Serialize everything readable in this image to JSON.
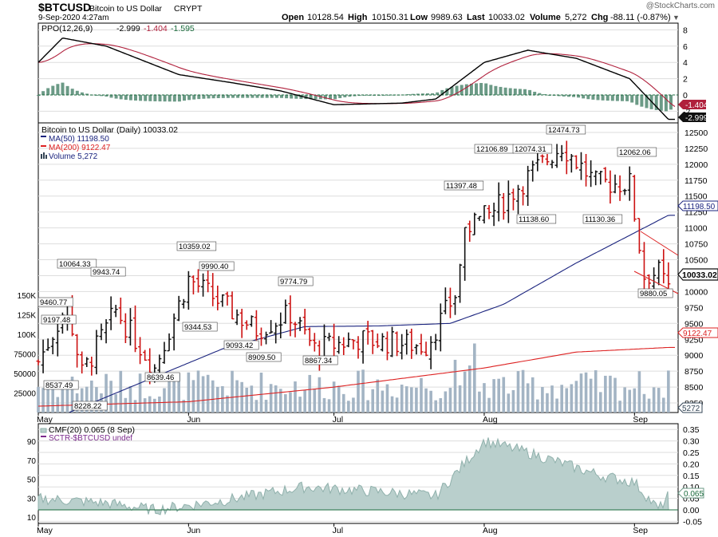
{
  "header": {
    "symbol": "$BTCUSD",
    "name": "Bitcoin to US Dollar",
    "exchange": "CRYPT",
    "date": "9-Sep-2020 4:27am",
    "watermark": "@StockCharts.com",
    "open_label": "Open",
    "open": "10128.54",
    "high_label": "High",
    "high": "10150.31",
    "low_label": "Low",
    "low": "9989.63",
    "last_label": "Last",
    "last": "10033.02",
    "volume_label": "Volume",
    "volume": "5,272",
    "chg_label": "Chg",
    "chg": "-88.11 (-0.87%)",
    "chg_arrow": "▼"
  },
  "colors": {
    "up_bar": "#111111",
    "down_bar": "#cc1111",
    "ma50": "#1a237e",
    "ma200": "#dd2222",
    "volume": "#a3b4c4",
    "ppo_line": "#000000",
    "ppo_signal": "#b0203c",
    "ppo_hist": "#6b9a86",
    "cmf_fill": "#b9cfcc",
    "cmf_line": "#8fb0ab",
    "grid": "#dddddd",
    "ref_line": "#1a6b3c"
  },
  "ppo_panel": {
    "legend": "PPO(12,26,9)",
    "ppo_value": "-2.999",
    "signal_value": "-1.404",
    "hist_value": "-1.595",
    "y_ticks": [
      "8",
      "6",
      "4",
      "2",
      "0",
      "-2"
    ],
    "tag_signal": "-1.404",
    "tag_ppo": "-2.999"
  },
  "price_panel": {
    "legend_title": "Bitcoin to US Dollar (Daily) 10033.02",
    "legend_ma50": "MA(50) 11198.50",
    "legend_ma200": "MA(200) 9122.47",
    "legend_volume": "Volume 5,272",
    "y_ticks": [
      "12500",
      "12250",
      "12000",
      "11750",
      "11500",
      "11250",
      "11000",
      "10750",
      "10500",
      "10250",
      "10000",
      "9750",
      "9500",
      "9250",
      "9000",
      "8750",
      "8500",
      "8250"
    ],
    "volume_ticks": [
      "150K",
      "125K",
      "100K",
      "75000",
      "50000",
      "25000"
    ],
    "tag_ma50": "11198.50",
    "tag_last": "10033.02",
    "tag_ma200": "9122.47",
    "tag_volume": "5272",
    "annotations": [
      "9460.77",
      "9197.48",
      "8537.49",
      "10064.33",
      "8228.22",
      "9943.74",
      "8639.46",
      "10359.02",
      "9344.53",
      "9990.40",
      "9093.42",
      "8909.50",
      "9774.79",
      "8867.34",
      "11397.48",
      "12106.89",
      "12074.31",
      "11138.60",
      "12474.73",
      "11130.36",
      "12062.06",
      "9880.05"
    ]
  },
  "cmf_panel": {
    "legend_cmf": "CMF(20) 0.065 (8 Sep)",
    "legend_sctr": "SCTR-$BTCUSD undef",
    "right_ticks": [
      "0.35",
      "0.30",
      "0.25",
      "0.20",
      "0.15",
      "0.10",
      "0.05",
      "0.00",
      "-0.05"
    ],
    "left_ticks": [
      "90",
      "70",
      "50",
      "30",
      "10"
    ],
    "tag_cmf": "0.065"
  },
  "x_axis": {
    "months": [
      "May",
      "Jun",
      "Jul",
      "Aug",
      "Sep"
    ]
  },
  "chart_data": {
    "type": "ohlc",
    "title": "Bitcoin to US Dollar (Daily)",
    "ylim": [
      8100,
      12650
    ],
    "key_points": [
      {
        "x": "2020-05-01",
        "y": 8900
      },
      {
        "x": "2020-05-07",
        "y": 9800
      },
      {
        "x": "2020-05-10",
        "y": 8700
      },
      {
        "x": "2020-05-17",
        "y": 9700
      },
      {
        "x": "2020-05-25",
        "y": 8800
      },
      {
        "x": "2020-06-01",
        "y": 10200
      },
      {
        "x": "2020-06-15",
        "y": 9400
      },
      {
        "x": "2020-06-22",
        "y": 9650
      },
      {
        "x": "2020-06-27",
        "y": 9100
      },
      {
        "x": "2020-07-06",
        "y": 9250
      },
      {
        "x": "2020-07-20",
        "y": 9150
      },
      {
        "x": "2020-07-26",
        "y": 9950
      },
      {
        "x": "2020-07-28",
        "y": 11000
      },
      {
        "x": "2020-08-02",
        "y": 11200
      },
      {
        "x": "2020-08-10",
        "y": 11800
      },
      {
        "x": "2020-08-17",
        "y": 12300
      },
      {
        "x": "2020-08-24",
        "y": 11700
      },
      {
        "x": "2020-08-31",
        "y": 11700
      },
      {
        "x": "2020-09-03",
        "y": 10250
      },
      {
        "x": "2020-09-06",
        "y": 10300
      },
      {
        "x": "2020-09-08",
        "y": 10033
      }
    ],
    "ma50_points": [
      {
        "x": "2020-05-01",
        "y": 7900
      },
      {
        "x": "2020-05-20",
        "y": 8500
      },
      {
        "x": "2020-06-08",
        "y": 9100
      },
      {
        "x": "2020-06-25",
        "y": 9450
      },
      {
        "x": "2020-07-10",
        "y": 9460
      },
      {
        "x": "2020-07-25",
        "y": 9500
      },
      {
        "x": "2020-08-05",
        "y": 9800
      },
      {
        "x": "2020-08-20",
        "y": 10450
      },
      {
        "x": "2020-09-08",
        "y": 11198.5
      }
    ],
    "ma200_points": [
      {
        "x": "2020-05-01",
        "y": 8200
      },
      {
        "x": "2020-06-01",
        "y": 8270
      },
      {
        "x": "2020-07-01",
        "y": 8500
      },
      {
        "x": "2020-08-01",
        "y": 8800
      },
      {
        "x": "2020-08-20",
        "y": 9050
      },
      {
        "x": "2020-09-08",
        "y": 9122.47
      }
    ],
    "ppo_points": [
      {
        "x": "2020-05-01",
        "y": 4
      },
      {
        "x": "2020-05-06",
        "y": 7
      },
      {
        "x": "2020-05-15",
        "y": 6
      },
      {
        "x": "2020-05-30",
        "y": 2.5
      },
      {
        "x": "2020-06-10",
        "y": 1.5
      },
      {
        "x": "2020-06-20",
        "y": 0.5
      },
      {
        "x": "2020-07-01",
        "y": -1.2
      },
      {
        "x": "2020-07-15",
        "y": -1
      },
      {
        "x": "2020-07-22",
        "y": -0.5
      },
      {
        "x": "2020-08-01",
        "y": 4
      },
      {
        "x": "2020-08-10",
        "y": 5.5
      },
      {
        "x": "2020-08-20",
        "y": 4.5
      },
      {
        "x": "2020-08-31",
        "y": 2
      },
      {
        "x": "2020-09-08",
        "y": -2.999
      }
    ],
    "cmf_points": [
      {
        "x": "2020-05-01",
        "y": 0.05
      },
      {
        "x": "2020-05-15",
        "y": 0.03
      },
      {
        "x": "2020-05-25",
        "y": 0.0
      },
      {
        "x": "2020-06-08",
        "y": 0.04
      },
      {
        "x": "2020-06-25",
        "y": 0.1
      },
      {
        "x": "2020-07-10",
        "y": 0.08
      },
      {
        "x": "2020-07-22",
        "y": 0.06
      },
      {
        "x": "2020-08-01",
        "y": 0.3
      },
      {
        "x": "2020-08-10",
        "y": 0.25
      },
      {
        "x": "2020-08-25",
        "y": 0.15
      },
      {
        "x": "2020-09-01",
        "y": 0.12
      },
      {
        "x": "2020-09-06",
        "y": 0.0
      },
      {
        "x": "2020-09-08",
        "y": 0.065
      }
    ]
  }
}
